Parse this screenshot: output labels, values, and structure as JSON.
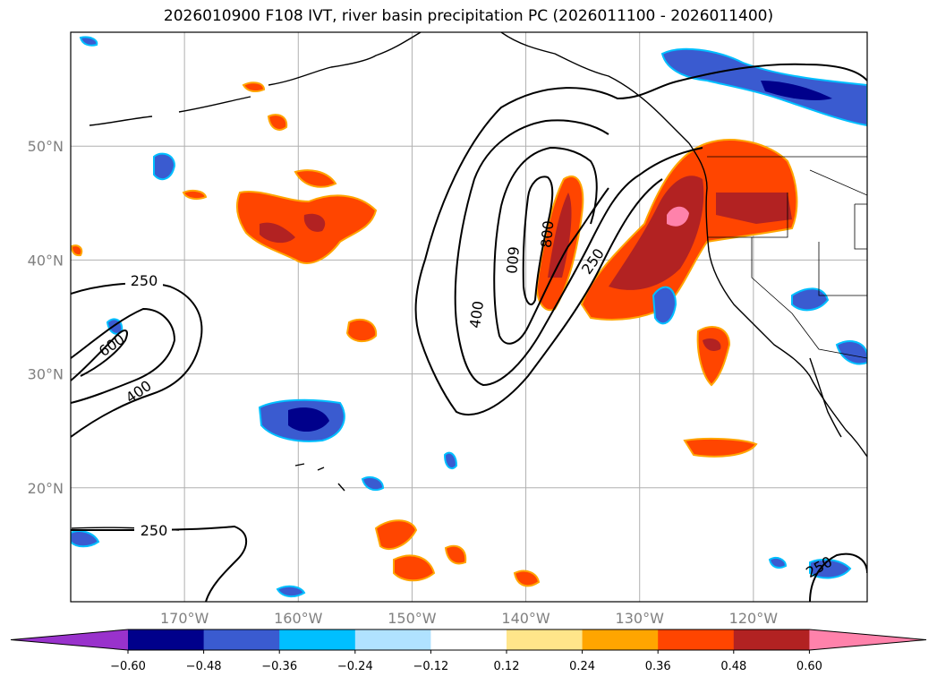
{
  "title": "2026010900 F108 IVT, river basin precipitation PC (2026011100 - 2026011400)",
  "map": {
    "lon_range": [
      -180,
      -110
    ],
    "lat_range": [
      10,
      60
    ],
    "lon_ticks": [
      {
        "value": -170,
        "label": "170°W"
      },
      {
        "value": -160,
        "label": "160°W"
      },
      {
        "value": -150,
        "label": "150°W"
      },
      {
        "value": -140,
        "label": "140°W"
      },
      {
        "value": -130,
        "label": "130°W"
      },
      {
        "value": -120,
        "label": "120°W"
      }
    ],
    "lat_ticks": [
      {
        "value": 20,
        "label": "20°N"
      },
      {
        "value": 30,
        "label": "30°N"
      },
      {
        "value": 40,
        "label": "40°N"
      },
      {
        "value": 50,
        "label": "50°N"
      }
    ],
    "ivt_contour_labels": [
      "250",
      "600",
      "400",
      "800",
      "600",
      "400",
      "250",
      "250",
      "250"
    ]
  },
  "colorbar": {
    "colors": [
      "#9932cc",
      "#00008b",
      "#3a5bd0",
      "#00bfff",
      "#b0e2ff",
      "#ffffff",
      "#ffe58a",
      "#ffa500",
      "#ff4500",
      "#b22222",
      "#ff82ab"
    ],
    "tick_labels": [
      "−0.60",
      "−0.48",
      "−0.36",
      "−0.24",
      "−0.12",
      "0.12",
      "0.24",
      "0.36",
      "0.48",
      "0.60"
    ]
  }
}
